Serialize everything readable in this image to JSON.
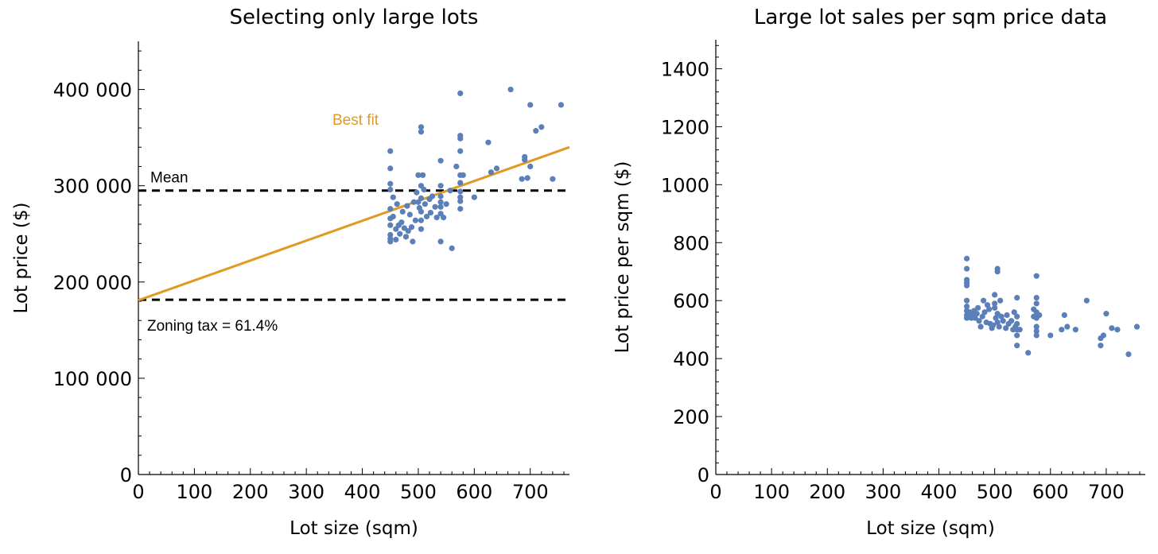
{
  "colors": {
    "points": "#5b7fb8",
    "fit": "#e09b24",
    "guide": "#000000"
  },
  "chart_data": [
    {
      "type": "scatter",
      "title": "Selecting only large lots",
      "xlabel": "Lot size (sqm)",
      "ylabel": "Lot price ($)",
      "xlim": [
        0,
        770
      ],
      "ylim": [
        0,
        450000
      ],
      "xticks": [
        0,
        100,
        200,
        300,
        400,
        500,
        600,
        700
      ],
      "xtick_labels": [
        "0",
        "100",
        "200",
        "300",
        "400",
        "500",
        "600",
        "700"
      ],
      "yticks": [
        0,
        100000,
        200000,
        300000,
        400000
      ],
      "ytick_labels": [
        "0",
        "100 000",
        "200 000",
        "300 000",
        "400 000"
      ],
      "grid": false,
      "points": [
        [
          450,
          336000
        ],
        [
          450,
          318000
        ],
        [
          450,
          302000
        ],
        [
          450,
          296000
        ],
        [
          450,
          276000
        ],
        [
          450,
          266000
        ],
        [
          450,
          259000
        ],
        [
          450,
          249000
        ],
        [
          450,
          245000
        ],
        [
          450,
          242000
        ],
        [
          455,
          288000
        ],
        [
          455,
          268000
        ],
        [
          460,
          255000
        ],
        [
          460,
          244000
        ],
        [
          462,
          281000
        ],
        [
          465,
          259000
        ],
        [
          467,
          250000
        ],
        [
          470,
          262000
        ],
        [
          472,
          273000
        ],
        [
          475,
          256000
        ],
        [
          478,
          247000
        ],
        [
          480,
          279000
        ],
        [
          482,
          253000
        ],
        [
          485,
          270000
        ],
        [
          488,
          257000
        ],
        [
          490,
          242000
        ],
        [
          492,
          283000
        ],
        [
          495,
          264000
        ],
        [
          497,
          293000
        ],
        [
          500,
          311000
        ],
        [
          500,
          283000
        ],
        [
          502,
          277000
        ],
        [
          505,
          361000
        ],
        [
          505,
          356000
        ],
        [
          505,
          300000
        ],
        [
          505,
          287000
        ],
        [
          505,
          273000
        ],
        [
          505,
          264000
        ],
        [
          505,
          255000
        ],
        [
          508,
          311000
        ],
        [
          510,
          296000
        ],
        [
          512,
          281000
        ],
        [
          515,
          268000
        ],
        [
          520,
          286000
        ],
        [
          522,
          272000
        ],
        [
          525,
          289000
        ],
        [
          530,
          278000
        ],
        [
          533,
          267000
        ],
        [
          540,
          326000
        ],
        [
          540,
          300000
        ],
        [
          540,
          289000
        ],
        [
          540,
          283000
        ],
        [
          540,
          278000
        ],
        [
          540,
          271000
        ],
        [
          540,
          242000
        ],
        [
          545,
          267000
        ],
        [
          550,
          281000
        ],
        [
          557,
          295000
        ],
        [
          560,
          235000
        ],
        [
          568,
          320000
        ],
        [
          575,
          396000
        ],
        [
          575,
          352000
        ],
        [
          575,
          349000
        ],
        [
          575,
          336000
        ],
        [
          575,
          311000
        ],
        [
          575,
          303000
        ],
        [
          575,
          294000
        ],
        [
          575,
          288000
        ],
        [
          575,
          284000
        ],
        [
          575,
          276000
        ],
        [
          580,
          311000
        ],
        [
          600,
          288000
        ],
        [
          625,
          345000
        ],
        [
          630,
          314000
        ],
        [
          640,
          318000
        ],
        [
          665,
          400000
        ],
        [
          685,
          307000
        ],
        [
          690,
          330000
        ],
        [
          690,
          327000
        ],
        [
          695,
          308000
        ],
        [
          700,
          384000
        ],
        [
          700,
          320000
        ],
        [
          710,
          357000
        ],
        [
          720,
          361000
        ],
        [
          740,
          307000
        ],
        [
          755,
          384000
        ]
      ],
      "fit_line": {
        "name": "Best fit",
        "x": [
          0,
          770
        ],
        "y": [
          181000,
          340000
        ]
      },
      "hlines": [
        {
          "label": "Mean",
          "y": 295000
        },
        {
          "label": "Zoning tax = 61.4%",
          "y": 181500
        }
      ]
    },
    {
      "type": "scatter",
      "title": "Large lot sales per sqm price data",
      "xlabel": "Lot size (sqm)",
      "ylabel": "Lot price per sqm ($)",
      "xlim": [
        0,
        770
      ],
      "ylim": [
        0,
        1500
      ],
      "xticks": [
        0,
        100,
        200,
        300,
        400,
        500,
        600,
        700
      ],
      "xtick_labels": [
        "0",
        "100",
        "200",
        "300",
        "400",
        "500",
        "600",
        "700"
      ],
      "yticks": [
        0,
        200,
        400,
        600,
        800,
        1000,
        1200,
        1400
      ],
      "ytick_labels": [
        "0",
        "200",
        "400",
        "600",
        "800",
        "1000",
        "1200",
        "1400"
      ],
      "grid": false,
      "points": [
        [
          450,
          745
        ],
        [
          450,
          710
        ],
        [
          450,
          672
        ],
        [
          450,
          662
        ],
        [
          450,
          652
        ],
        [
          450,
          600
        ],
        [
          450,
          580
        ],
        [
          450,
          565
        ],
        [
          450,
          550
        ],
        [
          450,
          540
        ],
        [
          455,
          560
        ],
        [
          458,
          540
        ],
        [
          460,
          550
        ],
        [
          463,
          565
        ],
        [
          465,
          540
        ],
        [
          468,
          555
        ],
        [
          470,
          575
        ],
        [
          472,
          530
        ],
        [
          475,
          510
        ],
        [
          478,
          545
        ],
        [
          480,
          600
        ],
        [
          482,
          560
        ],
        [
          485,
          525
        ],
        [
          487,
          585
        ],
        [
          490,
          570
        ],
        [
          492,
          520
        ],
        [
          495,
          505
        ],
        [
          497,
          515
        ],
        [
          500,
          620
        ],
        [
          500,
          590
        ],
        [
          500,
          575
        ],
        [
          502,
          540
        ],
        [
          505,
          710
        ],
        [
          505,
          700
        ],
        [
          505,
          555
        ],
        [
          505,
          525
        ],
        [
          508,
          510
        ],
        [
          510,
          600
        ],
        [
          512,
          545
        ],
        [
          515,
          530
        ],
        [
          520,
          505
        ],
        [
          522,
          550
        ],
        [
          525,
          520
        ],
        [
          530,
          530
        ],
        [
          533,
          500
        ],
        [
          535,
          560
        ],
        [
          537,
          510
        ],
        [
          540,
          610
        ],
        [
          540,
          545
        ],
        [
          540,
          520
        ],
        [
          540,
          500
        ],
        [
          540,
          480
        ],
        [
          540,
          445
        ],
        [
          545,
          500
        ],
        [
          560,
          420
        ],
        [
          570,
          570
        ],
        [
          570,
          545
        ],
        [
          575,
          685
        ],
        [
          575,
          610
        ],
        [
          575,
          590
        ],
        [
          575,
          560
        ],
        [
          575,
          540
        ],
        [
          575,
          510
        ],
        [
          575,
          495
        ],
        [
          575,
          480
        ],
        [
          580,
          550
        ],
        [
          600,
          480
        ],
        [
          620,
          500
        ],
        [
          625,
          550
        ],
        [
          630,
          510
        ],
        [
          645,
          500
        ],
        [
          665,
          600
        ],
        [
          690,
          470
        ],
        [
          690,
          445
        ],
        [
          695,
          480
        ],
        [
          700,
          555
        ],
        [
          710,
          505
        ],
        [
          720,
          500
        ],
        [
          740,
          415
        ],
        [
          755,
          510
        ]
      ]
    }
  ]
}
